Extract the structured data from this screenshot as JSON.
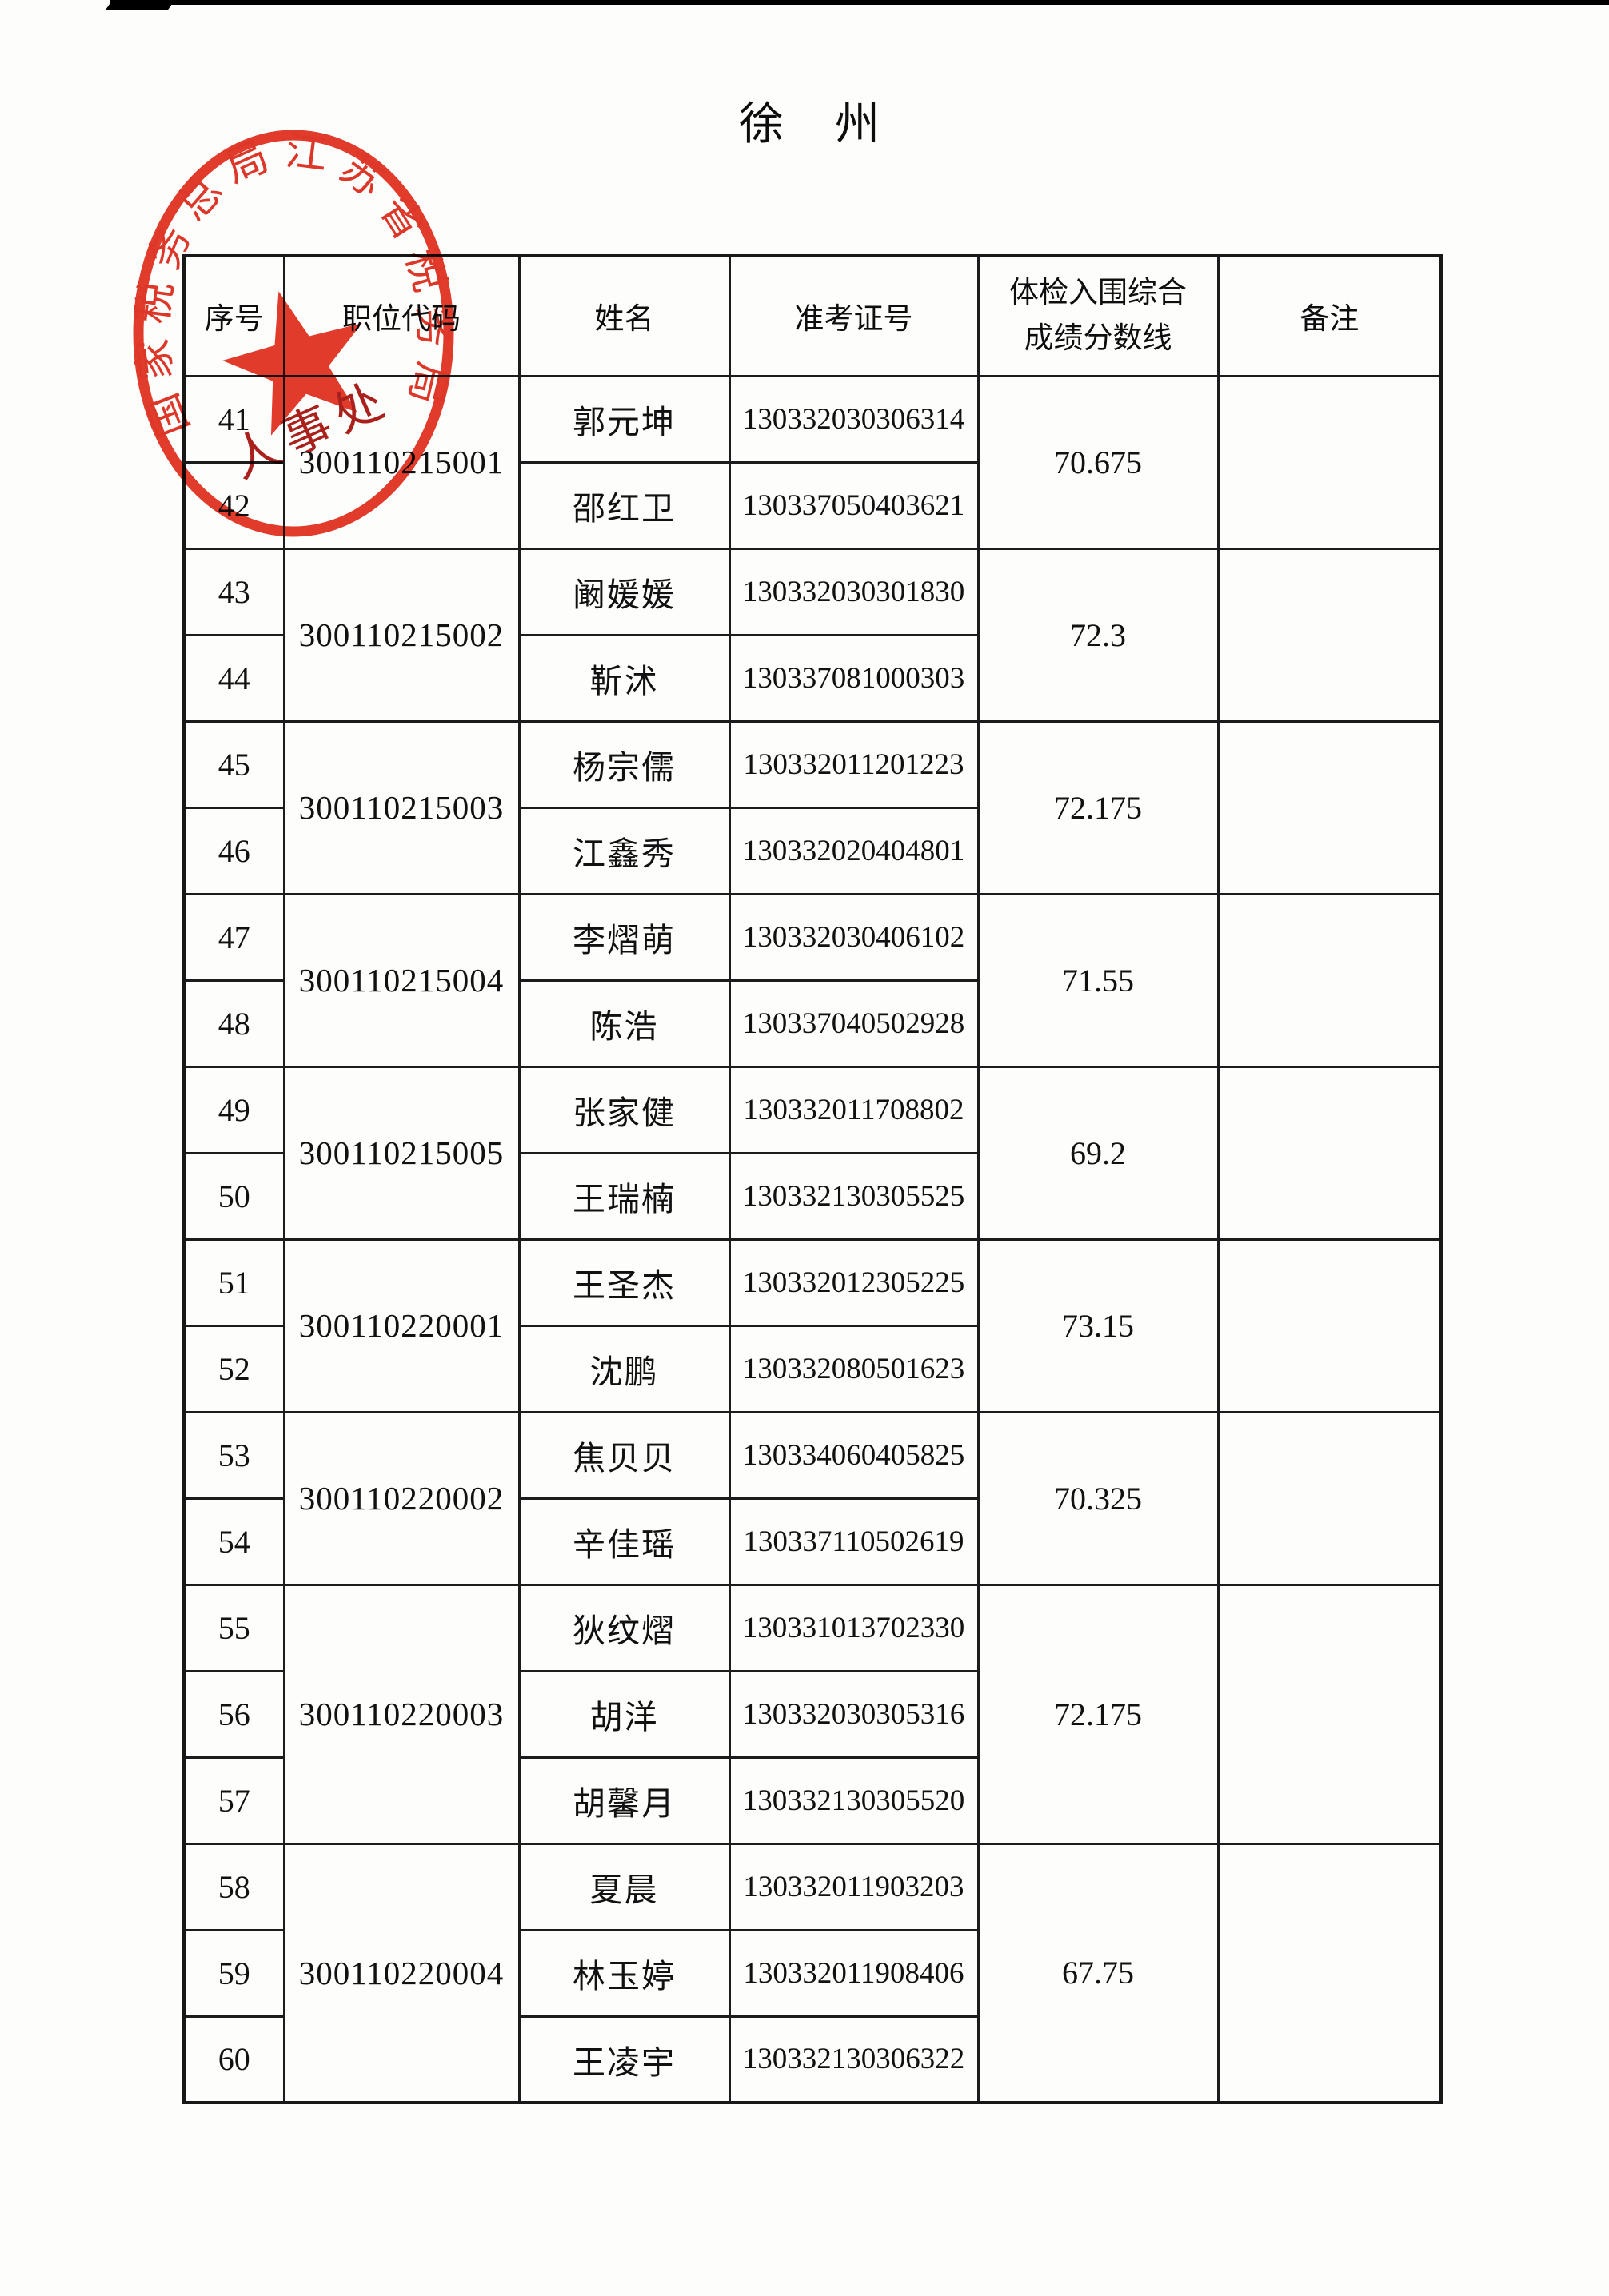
{
  "page": {
    "title": "徐　州"
  },
  "stamp": {
    "arc_text": "国家税务总局江苏省税务局",
    "center_text": "人事处",
    "ring_color": "#e2301f",
    "star_color": "#e2301f",
    "arc_text_color": "#dd2c1c",
    "dark_text_color": "#a61410"
  },
  "table": {
    "headers": {
      "index": "序号",
      "position_code": "职位代码",
      "name": "姓名",
      "exam_id": "准考证号",
      "score_line1": "体检入围综合",
      "score_line2": "成绩分数线",
      "remark": "备注"
    },
    "groups": [
      {
        "code": "300110215001",
        "score": "70.675",
        "remark": "",
        "members": [
          {
            "index": "41",
            "name": "郭元坤",
            "exam_id": "130332030306314"
          },
          {
            "index": "42",
            "name": "邵红卫",
            "exam_id": "130337050403621"
          }
        ]
      },
      {
        "code": "300110215002",
        "score": "72.3",
        "remark": "",
        "members": [
          {
            "index": "43",
            "name": "阚媛媛",
            "exam_id": "130332030301830"
          },
          {
            "index": "44",
            "name": "靳沭",
            "exam_id": "130337081000303"
          }
        ]
      },
      {
        "code": "300110215003",
        "score": "72.175",
        "remark": "",
        "members": [
          {
            "index": "45",
            "name": "杨宗儒",
            "exam_id": "130332011201223"
          },
          {
            "index": "46",
            "name": "江鑫秀",
            "exam_id": "130332020404801"
          }
        ]
      },
      {
        "code": "300110215004",
        "score": "71.55",
        "remark": "",
        "members": [
          {
            "index": "47",
            "name": "李熠萌",
            "exam_id": "130332030406102"
          },
          {
            "index": "48",
            "name": "陈浩",
            "exam_id": "130337040502928"
          }
        ]
      },
      {
        "code": "300110215005",
        "score": "69.2",
        "remark": "",
        "members": [
          {
            "index": "49",
            "name": "张家健",
            "exam_id": "130332011708802"
          },
          {
            "index": "50",
            "name": "王瑞楠",
            "exam_id": "130332130305525"
          }
        ]
      },
      {
        "code": "300110220001",
        "score": "73.15",
        "remark": "",
        "members": [
          {
            "index": "51",
            "name": "王圣杰",
            "exam_id": "130332012305225"
          },
          {
            "index": "52",
            "name": "沈鹏",
            "exam_id": "130332080501623"
          }
        ]
      },
      {
        "code": "300110220002",
        "score": "70.325",
        "remark": "",
        "members": [
          {
            "index": "53",
            "name": "焦贝贝",
            "exam_id": "130334060405825"
          },
          {
            "index": "54",
            "name": "辛佳瑶",
            "exam_id": "130337110502619"
          }
        ]
      },
      {
        "code": "300110220003",
        "score": "72.175",
        "remark": "",
        "members": [
          {
            "index": "55",
            "name": "狄纹熠",
            "exam_id": "130331013702330"
          },
          {
            "index": "56",
            "name": "胡洋",
            "exam_id": "130332030305316"
          },
          {
            "index": "57",
            "name": "胡馨月",
            "exam_id": "130332130305520"
          }
        ]
      },
      {
        "code": "300110220004",
        "score": "67.75",
        "remark": "",
        "members": [
          {
            "index": "58",
            "name": "夏晨",
            "exam_id": "130332011903203"
          },
          {
            "index": "59",
            "name": "林玉婷",
            "exam_id": "130332011908406"
          },
          {
            "index": "60",
            "name": "王凌宇",
            "exam_id": "130332130306322"
          }
        ]
      }
    ]
  }
}
